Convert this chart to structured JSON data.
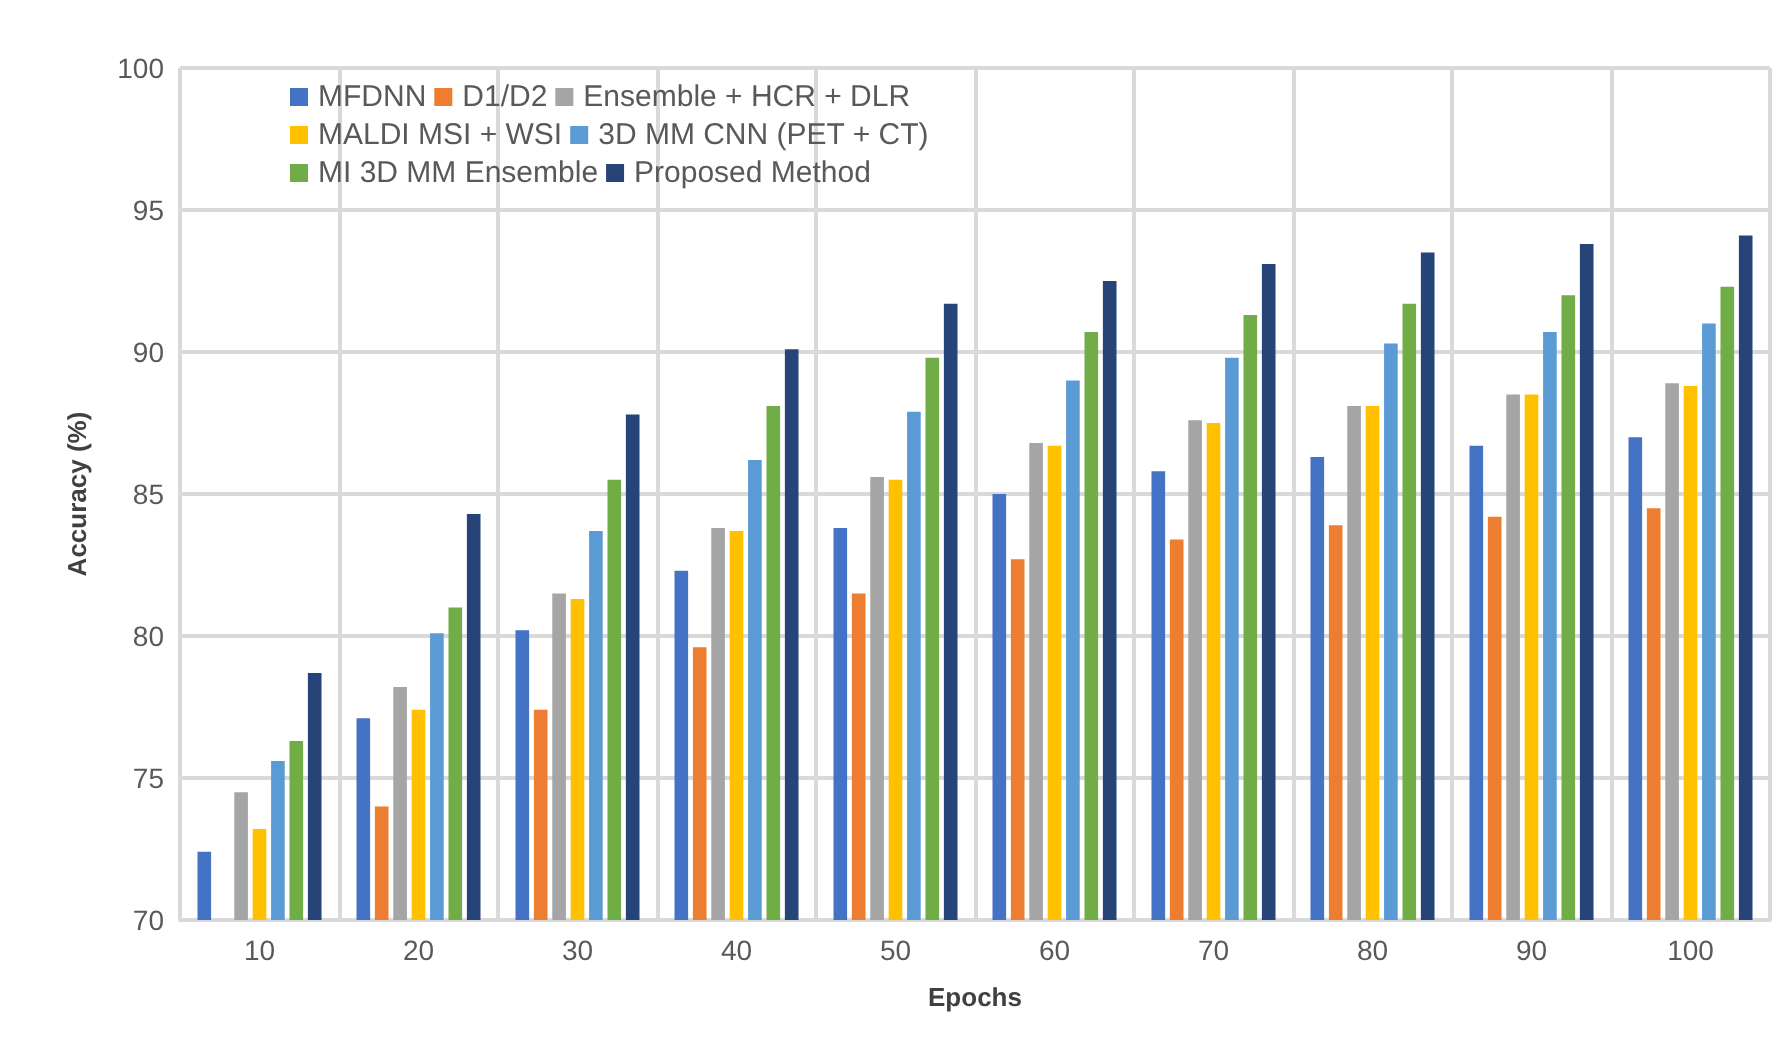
{
  "chart_data": {
    "type": "bar",
    "xlabel": "Epochs",
    "ylabel": "Accuracy (%)",
    "categories": [
      "10",
      "20",
      "30",
      "40",
      "50",
      "60",
      "70",
      "80",
      "90",
      "100"
    ],
    "series": [
      {
        "name": "MFDNN",
        "color": "#4472c4",
        "values": [
          72.4,
          77.1,
          80.2,
          82.3,
          83.8,
          85.0,
          85.8,
          86.3,
          86.7,
          87.0
        ]
      },
      {
        "name": "D1/D2",
        "color": "#ed7d31",
        "values": [
          null,
          74.0,
          77.4,
          79.6,
          81.5,
          82.7,
          83.4,
          83.9,
          84.2,
          84.5
        ]
      },
      {
        "name": "Ensemble + HCR + DLR",
        "color": "#a5a5a5",
        "values": [
          74.5,
          78.2,
          81.5,
          83.8,
          85.6,
          86.8,
          87.6,
          88.1,
          88.5,
          88.9
        ]
      },
      {
        "name": "MALDI MSI + WSI",
        "color": "#ffc000",
        "values": [
          73.2,
          77.4,
          81.3,
          83.7,
          85.5,
          86.7,
          87.5,
          88.1,
          88.5,
          88.8
        ]
      },
      {
        "name": "3D MM CNN (PET + CT)",
        "color": "#5b9bd5",
        "values": [
          75.6,
          80.1,
          83.7,
          86.2,
          87.9,
          89.0,
          89.8,
          90.3,
          90.7,
          91.0
        ]
      },
      {
        "name": "MI 3D MM Ensemble",
        "color": "#70ad47",
        "values": [
          76.3,
          81.0,
          85.5,
          88.1,
          89.8,
          90.7,
          91.3,
          91.7,
          92.0,
          92.3
        ]
      },
      {
        "name": "Proposed Method",
        "color": "#264478",
        "values": [
          78.7,
          84.3,
          87.8,
          90.1,
          91.7,
          92.5,
          93.1,
          93.5,
          93.8,
          94.1
        ]
      }
    ],
    "ylim": [
      70,
      100
    ],
    "yticks": [
      70,
      75,
      80,
      85,
      90,
      95,
      100
    ],
    "grid": true,
    "legend": "top left"
  }
}
